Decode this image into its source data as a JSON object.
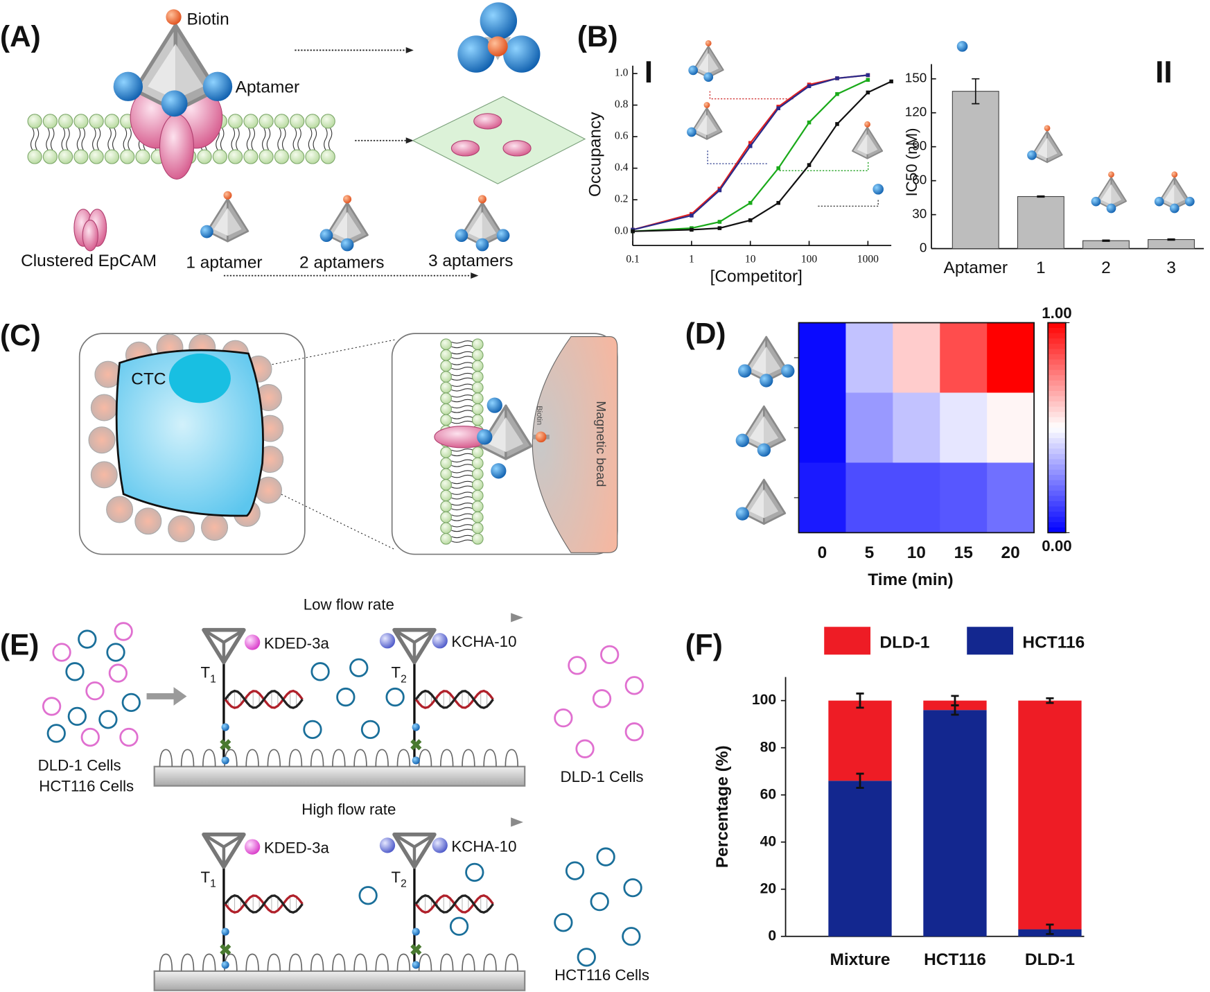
{
  "panel_labels": [
    "(A)",
    "(B)",
    "(C)",
    "(D)",
    "(E)",
    "(F)"
  ],
  "panel_a": {
    "biotin": "Biotin",
    "aptamer": "Aptamer",
    "clustered": "Clustered EpCAM",
    "one": "1 aptamer",
    "two": "2 aptamers",
    "three": "3 aptamers"
  },
  "panel_b": {
    "sub_i": "I",
    "sub_ii": "II"
  },
  "panel_c": {
    "ctc": "CTC",
    "biotin": "Biotin",
    "bead": "Magnetic bead"
  },
  "panel_e": {
    "input_cells": [
      "DLD-1 Cells",
      "HCT116 Cells"
    ],
    "rows": [
      {
        "flow": "Low flow rate",
        "kded": "KDED-3a",
        "kcha": "KCHA-10",
        "t1": {
          "main": "T",
          "sub": "1"
        },
        "t2": {
          "main": "T",
          "sub": "2"
        },
        "output": "DLD-1 Cells"
      },
      {
        "flow": "High flow rate",
        "kded": "KDED-3a",
        "kcha": "KCHA-10",
        "t1": {
          "main": "T",
          "sub": "1"
        },
        "t2": {
          "main": "T",
          "sub": "2"
        },
        "output": "HCT116 Cells"
      }
    ]
  },
  "chart_data": [
    {
      "type": "line",
      "xlabel": "[Competitor]",
      "ylabel": "Occupancy",
      "xlog": true,
      "x": [
        0.1,
        1,
        3,
        10,
        30,
        100,
        300,
        1000,
        2500
      ],
      "series": [
        {
          "color": "#e02020",
          "values": [
            0.01,
            0.11,
            0.27,
            0.56,
            0.79,
            0.93,
            0.97,
            0.99,
            null
          ]
        },
        {
          "color": "#2a2a8a",
          "values": [
            0.01,
            0.1,
            0.26,
            0.54,
            0.78,
            0.92,
            0.97,
            0.99,
            null
          ]
        },
        {
          "color": "#1aaa1a",
          "values": [
            0.0,
            0.02,
            0.06,
            0.18,
            0.4,
            0.69,
            0.87,
            0.96,
            null
          ]
        },
        {
          "color": "#111111",
          "values": [
            0.0,
            0.01,
            0.02,
            0.07,
            0.18,
            0.42,
            0.68,
            0.88,
            0.95
          ]
        }
      ],
      "xlim": [
        0.1,
        2500
      ],
      "xticks": [
        0.1,
        1,
        10,
        100,
        1000
      ],
      "ylim": [
        -0.09,
        1.05
      ],
      "yticks": [
        {
          "value": 0,
          "label": "0.0"
        },
        {
          "value": 0.2,
          "label": "0.2"
        },
        {
          "value": 0.4,
          "label": "0.4"
        },
        {
          "value": 0.6,
          "label": "0.6"
        },
        {
          "value": 0.8,
          "label": "0.8"
        },
        {
          "value": 1,
          "label": "1.0"
        }
      ]
    },
    {
      "type": "bar",
      "ylabel": "IC50 (nM)",
      "categories": [
        "Aptamer",
        "1",
        "2",
        "3"
      ],
      "values": [
        139,
        46,
        7,
        8
      ],
      "errors": [
        11,
        0.5,
        0.5,
        0.5
      ],
      "color": "#bdbdbd",
      "ylim": [
        0,
        163
      ],
      "yticks": [
        0,
        30,
        60,
        90,
        120,
        150
      ]
    },
    {
      "type": "heatmap",
      "xlabel": "Time (min)",
      "x": [
        0,
        5,
        10,
        15,
        20
      ],
      "values": [
        [
          0.02,
          0.38,
          0.6,
          0.85,
          1.0
        ],
        [
          0.02,
          0.3,
          0.38,
          0.45,
          0.52
        ],
        [
          0.05,
          0.15,
          0.15,
          0.17,
          0.22
        ]
      ],
      "colorscale": [
        "#0000ff",
        "#ffffff",
        "#ff0000"
      ],
      "zlim": [
        0,
        1
      ],
      "zticks": [
        {
          "value": 0,
          "label": "0.00"
        },
        {
          "value": 1,
          "label": "1.00"
        }
      ]
    },
    {
      "type": "stacked_bar",
      "ylabel": "Percentage (%)",
      "categories": [
        "Mixture",
        "HCT116",
        "DLD-1"
      ],
      "series": [
        {
          "name": "DLD-1",
          "color": "#ee1c25",
          "values": [
            34,
            4,
            97
          ],
          "errors": [
            3,
            2,
            1
          ]
        },
        {
          "name": "HCT116",
          "color": "#13278f",
          "values": [
            66,
            96,
            3
          ],
          "errors": [
            3,
            2,
            2
          ]
        }
      ],
      "ylim": [
        0,
        110
      ],
      "yticks": [
        0,
        20,
        40,
        60,
        80,
        100
      ]
    }
  ]
}
